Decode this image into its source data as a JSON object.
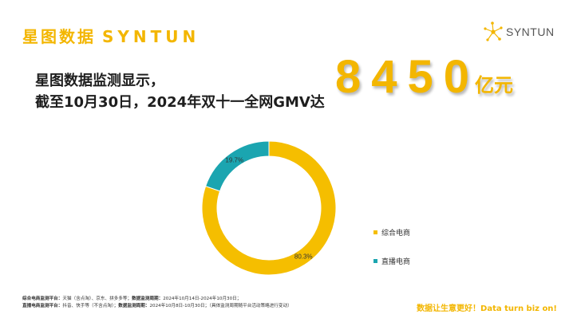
{
  "header": {
    "brand_cn": "星图数据",
    "brand_en": "SYNTUN",
    "logo_text": "SYNTUN"
  },
  "headline": {
    "line1": "星图数据监测显示，",
    "line2": "截至10月30日，2024年双十一全网GMV达",
    "value": "8450",
    "unit": "亿元"
  },
  "chart_data": {
    "type": "pie",
    "style": "donut",
    "title": "",
    "labels": [
      "综合电商",
      "直播电商"
    ],
    "values": [
      80.3,
      19.7
    ],
    "value_labels": [
      "80.3%",
      "19.7%"
    ],
    "colors": [
      "#f5be00",
      "#1ba5b0"
    ],
    "legend_position": "right"
  },
  "footnote": {
    "line1_label": "综合电商监测平台：",
    "line1_text": "天猫（含点淘）、京东、拼多多等；",
    "line1_period_label": "数据监测周期：",
    "line1_period": "2024年10月14日-2024年10月30日；",
    "line2_label": "直播电商监测平台：",
    "line2_text": "抖音、快手等（不含点淘）；",
    "line2_period_label": "数据监测周期：",
    "line2_period": "2024年10月8日-10月30日；（具体监测周期随平台活动策略进行变动）"
  },
  "slogan": "数据让生意更好！Data turn biz on!",
  "icons": {
    "logo": "syntun-star-nodes-icon"
  }
}
